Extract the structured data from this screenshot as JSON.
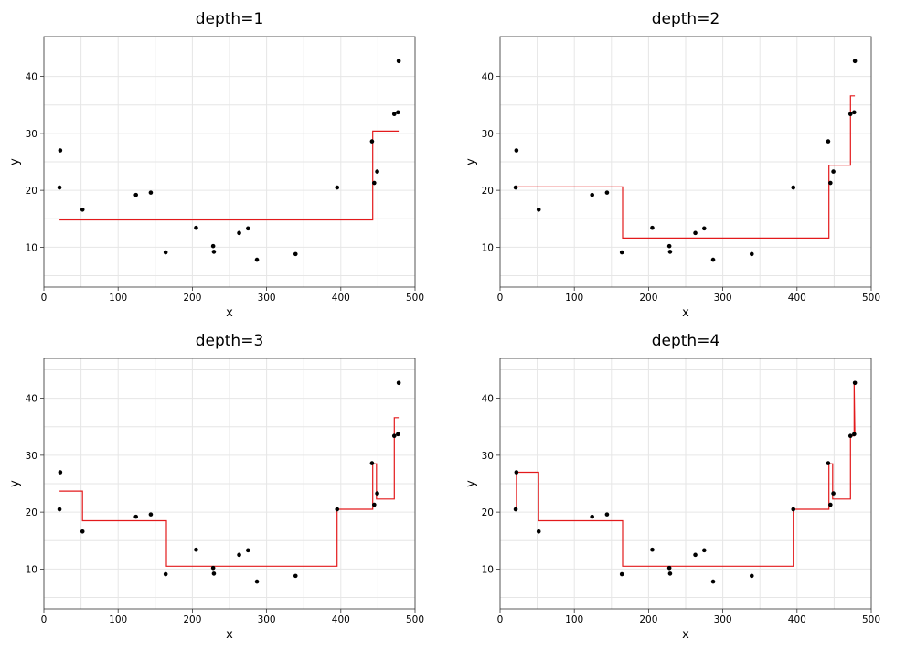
{
  "colors": {
    "fit_line": "#e31a1c",
    "points": "#000000"
  },
  "chart_data": [
    {
      "type": "scatter",
      "title": "depth=1",
      "xlabel": "x",
      "ylabel": "y",
      "xlim": [
        0,
        500
      ],
      "ylim": [
        3,
        47
      ],
      "x_ticks": [
        0,
        100,
        200,
        300,
        400,
        500
      ],
      "y_ticks": [
        10,
        20,
        30,
        40
      ],
      "grid": true,
      "series": [
        {
          "kind": "points",
          "x": [
            21,
            22,
            52,
            124,
            144,
            164,
            205,
            228,
            229,
            263,
            275,
            287,
            339,
            395,
            442,
            445,
            449,
            472,
            477,
            478
          ],
          "y": [
            20.5,
            27,
            16.6,
            19.2,
            19.6,
            9.1,
            13.4,
            10.2,
            9.2,
            12.5,
            13.3,
            7.8,
            8.8,
            20.5,
            28.6,
            21.3,
            23.3,
            33.4,
            33.7,
            42.7
          ]
        },
        {
          "kind": "step",
          "x": [
            21,
            443,
            443,
            478
          ],
          "y": [
            14.8,
            14.8,
            30.4,
            30.4
          ]
        }
      ]
    },
    {
      "type": "scatter",
      "title": "depth=2",
      "xlabel": "x",
      "ylabel": "y",
      "xlim": [
        0,
        500
      ],
      "ylim": [
        3,
        47
      ],
      "x_ticks": [
        0,
        100,
        200,
        300,
        400,
        500
      ],
      "y_ticks": [
        10,
        20,
        30,
        40
      ],
      "grid": true,
      "series": [
        {
          "kind": "points",
          "x": [
            21,
            22,
            52,
            124,
            144,
            164,
            205,
            228,
            229,
            263,
            275,
            287,
            339,
            395,
            442,
            445,
            449,
            472,
            477,
            478
          ],
          "y": [
            20.5,
            27,
            16.6,
            19.2,
            19.6,
            9.1,
            13.4,
            10.2,
            9.2,
            12.5,
            13.3,
            7.8,
            8.8,
            20.5,
            28.6,
            21.3,
            23.3,
            33.4,
            33.7,
            42.7
          ]
        },
        {
          "kind": "step",
          "x": [
            21,
            165,
            165,
            443,
            443,
            472,
            472,
            478
          ],
          "y": [
            20.6,
            20.6,
            11.6,
            11.6,
            24.4,
            24.4,
            36.6,
            36.6
          ]
        }
      ]
    },
    {
      "type": "scatter",
      "title": "depth=3",
      "xlabel": "x",
      "ylabel": "y",
      "xlim": [
        0,
        500
      ],
      "ylim": [
        3,
        47
      ],
      "x_ticks": [
        0,
        100,
        200,
        300,
        400,
        500
      ],
      "y_ticks": [
        10,
        20,
        30,
        40
      ],
      "grid": true,
      "series": [
        {
          "kind": "points",
          "x": [
            21,
            22,
            52,
            124,
            144,
            164,
            205,
            228,
            229,
            263,
            275,
            287,
            339,
            395,
            442,
            445,
            449,
            472,
            477,
            478
          ],
          "y": [
            20.5,
            27,
            16.6,
            19.2,
            19.6,
            9.1,
            13.4,
            10.2,
            9.2,
            12.5,
            13.3,
            7.8,
            8.8,
            20.5,
            28.6,
            21.3,
            23.3,
            33.4,
            33.7,
            42.7
          ]
        },
        {
          "kind": "step",
          "x": [
            21,
            52,
            52,
            165,
            165,
            395,
            395,
            443,
            443,
            448,
            448,
            472,
            472,
            478
          ],
          "y": [
            23.7,
            23.7,
            18.5,
            18.5,
            10.5,
            10.5,
            20.5,
            20.5,
            28.5,
            28.5,
            22.3,
            22.3,
            36.6,
            36.6
          ]
        }
      ]
    },
    {
      "type": "scatter",
      "title": "depth=4",
      "xlabel": "x",
      "ylabel": "y",
      "xlim": [
        0,
        500
      ],
      "ylim": [
        3,
        47
      ],
      "x_ticks": [
        0,
        100,
        200,
        300,
        400,
        500
      ],
      "y_ticks": [
        10,
        20,
        30,
        40
      ],
      "grid": true,
      "series": [
        {
          "kind": "points",
          "x": [
            21,
            22,
            52,
            124,
            144,
            164,
            205,
            228,
            229,
            263,
            275,
            287,
            339,
            395,
            442,
            445,
            449,
            472,
            477,
            478
          ],
          "y": [
            20.5,
            27,
            16.6,
            19.2,
            19.6,
            9.1,
            13.4,
            10.2,
            9.2,
            12.5,
            13.3,
            7.8,
            8.8,
            20.5,
            28.6,
            21.3,
            23.3,
            33.4,
            33.7,
            42.7
          ]
        },
        {
          "kind": "step",
          "x": [
            21,
            22,
            22,
            52,
            52,
            165,
            165,
            395,
            395,
            443,
            443,
            448,
            448,
            472,
            472,
            477,
            477,
            478
          ],
          "y": [
            20.5,
            20.5,
            27,
            27,
            18.5,
            18.5,
            10.5,
            10.5,
            20.5,
            20.5,
            28.5,
            28.5,
            22.3,
            22.3,
            33.4,
            33.4,
            42.7,
            33.7
          ]
        }
      ]
    }
  ]
}
